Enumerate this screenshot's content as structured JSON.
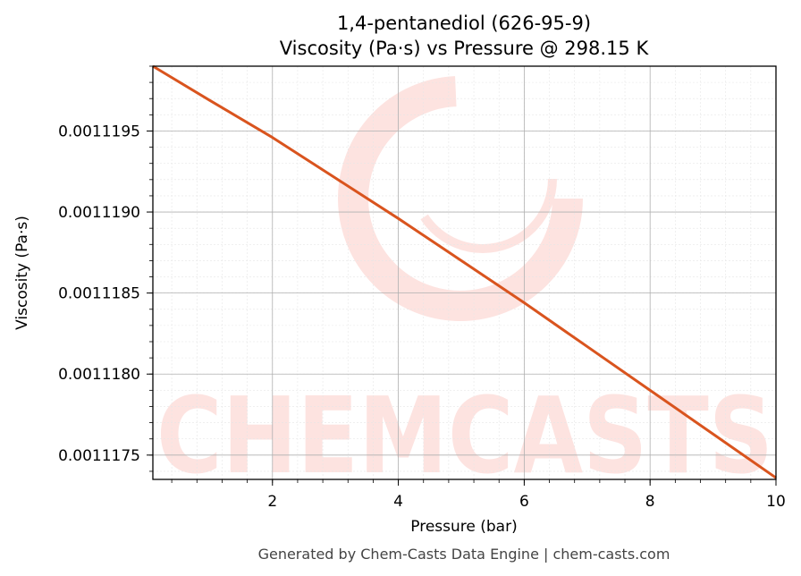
{
  "chart_data": {
    "type": "line",
    "title": "1,4-pentanediol (626-95-9)",
    "subtitle": "Viscosity (Pa·s) vs Pressure @ 298.15 K",
    "xlabel": "Pressure (bar)",
    "ylabel": "Viscosity (Pa·s)",
    "xlim": [
      0.1,
      10
    ],
    "ylim": [
      0.00111735,
      0.0011199
    ],
    "x_ticks": [
      2,
      4,
      6,
      8,
      10
    ],
    "x_tick_labels": [
      "2",
      "4",
      "6",
      "8",
      "10"
    ],
    "y_ticks": [
      0.0011175,
      0.001118,
      0.0011185,
      0.001119,
      0.0011195
    ],
    "y_tick_labels": [
      "0.0011175",
      "0.0011180",
      "0.0011185",
      "0.0011190",
      "0.0011195"
    ],
    "grid": true,
    "series": [
      {
        "color": "#d9541e",
        "x": [
          0.1,
          1,
          2,
          3,
          4,
          5,
          6,
          7,
          8,
          9,
          10
        ],
        "y": [
          0.0011199,
          0.00111969,
          0.00111946,
          0.00111921,
          0.00111896,
          0.0011187,
          0.00111844,
          0.00111817,
          0.0011179,
          0.00111763,
          0.00111736
        ]
      }
    ]
  },
  "watermark": {
    "text": "CHEMCASTS",
    "color": "#fde3e0"
  },
  "footer": {
    "text": "Generated by Chem-Casts Data Engine | chem-casts.com"
  }
}
